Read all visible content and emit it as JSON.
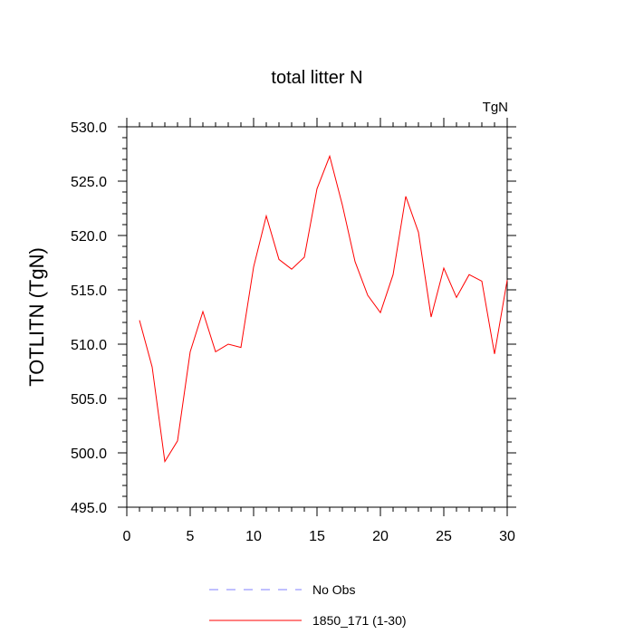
{
  "chart_data": {
    "type": "line",
    "title": "total litter N",
    "units_label": "TgN",
    "ylabel": "TOTLITN  (TgN)",
    "xlabel": "",
    "xlim": [
      0,
      30
    ],
    "ylim": [
      495,
      530
    ],
    "x_ticks": [
      0,
      5,
      10,
      15,
      20,
      25,
      30
    ],
    "y_ticks": [
      495,
      500,
      505,
      510,
      515,
      520,
      525,
      530
    ],
    "y_tick_labels": [
      "495.0",
      "500.0",
      "505.0",
      "510.0",
      "515.0",
      "520.0",
      "525.0",
      "530.0"
    ],
    "grid": false,
    "legend_position": "bottom",
    "series": [
      {
        "name": "No Obs",
        "color": "#8080ff",
        "dash": true,
        "x": [],
        "y": []
      },
      {
        "name": "1850_171 (1-30)",
        "color": "#ff0000",
        "dash": false,
        "x": [
          1,
          2,
          3,
          4,
          5,
          6,
          7,
          8,
          9,
          10,
          11,
          12,
          13,
          14,
          15,
          16,
          17,
          18,
          19,
          20,
          21,
          22,
          23,
          24,
          25,
          26,
          27,
          28,
          29,
          30
        ],
        "y": [
          512.2,
          507.9,
          499.2,
          501.1,
          509.3,
          513.0,
          509.3,
          510.0,
          509.7,
          517.1,
          521.8,
          517.8,
          516.9,
          518.0,
          524.3,
          527.3,
          522.8,
          517.6,
          514.5,
          512.9,
          516.4,
          523.6,
          520.3,
          512.5,
          517.0,
          514.3,
          516.4,
          515.8,
          509.1,
          515.9
        ]
      }
    ]
  }
}
